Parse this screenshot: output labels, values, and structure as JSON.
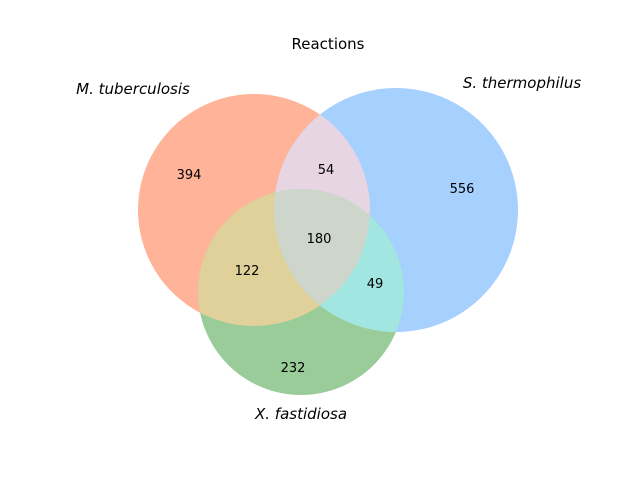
{
  "title": "Reactions",
  "sets": [
    {
      "id": "A",
      "label": "M. tuberculosis",
      "color": "#FFB499"
    },
    {
      "id": "B",
      "label": "S. thermophilus",
      "color": "#A6D0FE"
    },
    {
      "id": "C",
      "label": "X. fastidiosa",
      "color": "#99CC99"
    }
  ],
  "regions": {
    "A_only": "394",
    "B_only": "556",
    "C_only": "232",
    "AB_only": "54",
    "AC_only": "122",
    "BC_only": "49",
    "ABC": "180"
  },
  "region_colors": {
    "AB": "#E8D5E3",
    "AC": "#E0D19B",
    "BC": "#A2E6E2",
    "ABC": "#CED6CC"
  }
}
